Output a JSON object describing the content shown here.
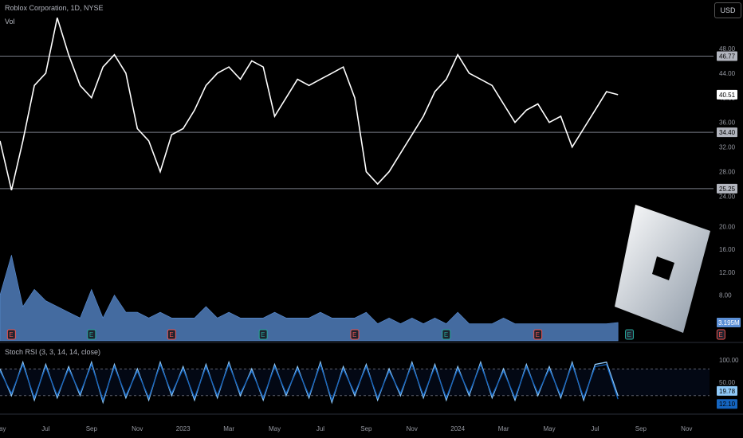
{
  "header": {
    "title": "Roblox Corporation, 1D, NYSE",
    "volume_label": "Vol",
    "currency_button": "USD",
    "stoch_label": "Stoch RSI (3, 3, 14, 14, close)"
  },
  "chart_data": [
    {
      "type": "line",
      "panel": "price",
      "ylim": [
        22,
        52
      ],
      "y_ticks": [
        48.0,
        44.0,
        40.0,
        36.0,
        32.0,
        28.0,
        24.0
      ],
      "horizontal_levels": [
        46.77,
        34.4,
        25.25
      ],
      "last_value": 40.51,
      "x_labels": [
        "May",
        "Jul",
        "Sep",
        "Nov",
        "2023",
        "Mar",
        "May",
        "Jul",
        "Sep",
        "Nov",
        "2024",
        "Mar",
        "May",
        "Jul",
        "Sep",
        "Nov"
      ],
      "x_label_pos": [
        0,
        2,
        4,
        6,
        8,
        10,
        12,
        14,
        16,
        18,
        20,
        22,
        24,
        26,
        28,
        30
      ],
      "x": [
        0,
        0.5,
        1,
        1.5,
        2,
        2.5,
        3,
        3.5,
        4,
        4.5,
        5,
        5.5,
        6,
        6.5,
        7,
        7.5,
        8,
        8.5,
        9,
        9.5,
        10,
        10.5,
        11,
        11.5,
        12,
        12.5,
        13,
        13.5,
        14,
        14.5,
        15,
        15.5,
        16,
        16.5,
        17,
        17.5,
        18,
        18.5,
        19,
        19.5,
        20,
        20.5,
        21,
        21.5,
        22,
        22.5,
        23,
        23.5,
        24,
        24.5,
        25,
        25.5,
        26,
        26.5,
        27
      ],
      "values": [
        33,
        25,
        33,
        42,
        44,
        53,
        47,
        42,
        40,
        45,
        47,
        44,
        35,
        33,
        28,
        34,
        35,
        38,
        42,
        44,
        45,
        43,
        46,
        45,
        37,
        40,
        43,
        42,
        43,
        44,
        45,
        40,
        28,
        26,
        28,
        31,
        34,
        37,
        41,
        43,
        47,
        44,
        43,
        42,
        39,
        36,
        38,
        39,
        36,
        37,
        32,
        35,
        38,
        41,
        40.51
      ],
      "series_color": "#ffffff"
    },
    {
      "type": "area",
      "panel": "volume",
      "ylim": [
        0,
        22
      ],
      "y_ticks": [
        20.0,
        16.0,
        12.0,
        8.0
      ],
      "unit": "M",
      "last_value": "3.195M",
      "x": [
        0,
        0.5,
        1,
        1.5,
        2,
        2.5,
        3,
        3.5,
        4,
        4.5,
        5,
        5.5,
        6,
        6.5,
        7,
        7.5,
        8,
        8.5,
        9,
        9.5,
        10,
        10.5,
        11,
        11.5,
        12,
        12.5,
        13,
        13.5,
        14,
        14.5,
        15,
        15.5,
        16,
        16.5,
        17,
        17.5,
        18,
        18.5,
        19,
        19.5,
        20,
        20.5,
        21,
        21.5,
        22,
        22.5,
        23,
        23.5,
        24,
        24.5,
        25,
        25.5,
        26,
        26.5,
        27
      ],
      "values": [
        8,
        15,
        6,
        9,
        7,
        6,
        5,
        4,
        9,
        4,
        8,
        5,
        5,
        4,
        5,
        4,
        4,
        4,
        6,
        4,
        5,
        4,
        4,
        4,
        5,
        4,
        4,
        4,
        5,
        4,
        4,
        4,
        5,
        3,
        4,
        3,
        4,
        3,
        4,
        3,
        5,
        3,
        3,
        3,
        4,
        3,
        3,
        3,
        3,
        3,
        3,
        3,
        3,
        3,
        3.2
      ],
      "earnings_markers": [
        0.5,
        4,
        7.5,
        11.5,
        15.5,
        19.5,
        23.5,
        27.5,
        31.5,
        36
      ],
      "earnings_label": "E",
      "series_color": "#5b8fd6"
    },
    {
      "type": "line",
      "panel": "stoch_rsi",
      "ylim": [
        0,
        100
      ],
      "y_ticks": [
        100.0,
        50.0,
        0.0
      ],
      "band": [
        20,
        80
      ],
      "last_values": [
        19.78,
        12.1
      ],
      "x": [
        0,
        0.5,
        1,
        1.5,
        2,
        2.5,
        3,
        3.5,
        4,
        4.5,
        5,
        5.5,
        6,
        6.5,
        7,
        7.5,
        8,
        8.5,
        9,
        9.5,
        10,
        10.5,
        11,
        11.5,
        12,
        12.5,
        13,
        13.5,
        14,
        14.5,
        15,
        15.5,
        16,
        16.5,
        17,
        17.5,
        18,
        18.5,
        19,
        19.5,
        20,
        20.5,
        21,
        21.5,
        22,
        22.5,
        23,
        23.5,
        24,
        24.5,
        25,
        25.5,
        26,
        26.5,
        27
      ],
      "series": [
        {
          "values": [
            80,
            20,
            95,
            10,
            90,
            15,
            85,
            20,
            95,
            5,
            90,
            15,
            80,
            10,
            95,
            20,
            85,
            10,
            90,
            15,
            95,
            20,
            80,
            10,
            90,
            20,
            85,
            15,
            95,
            5,
            85,
            20,
            90,
            10,
            80,
            20,
            95,
            15,
            90,
            10,
            85,
            20,
            95,
            15,
            80,
            10,
            90,
            20,
            85,
            15,
            95,
            10,
            90,
            95,
            19.78
          ]
        },
        {
          "values": [
            75,
            25,
            90,
            15,
            85,
            20,
            80,
            25,
            90,
            10,
            85,
            20,
            75,
            15,
            90,
            25,
            80,
            15,
            85,
            20,
            90,
            25,
            75,
            15,
            85,
            25,
            80,
            20,
            90,
            10,
            80,
            25,
            85,
            15,
            75,
            25,
            90,
            20,
            85,
            15,
            80,
            25,
            90,
            20,
            75,
            15,
            85,
            25,
            80,
            20,
            90,
            15,
            85,
            90,
            12.1
          ]
        }
      ]
    }
  ]
}
